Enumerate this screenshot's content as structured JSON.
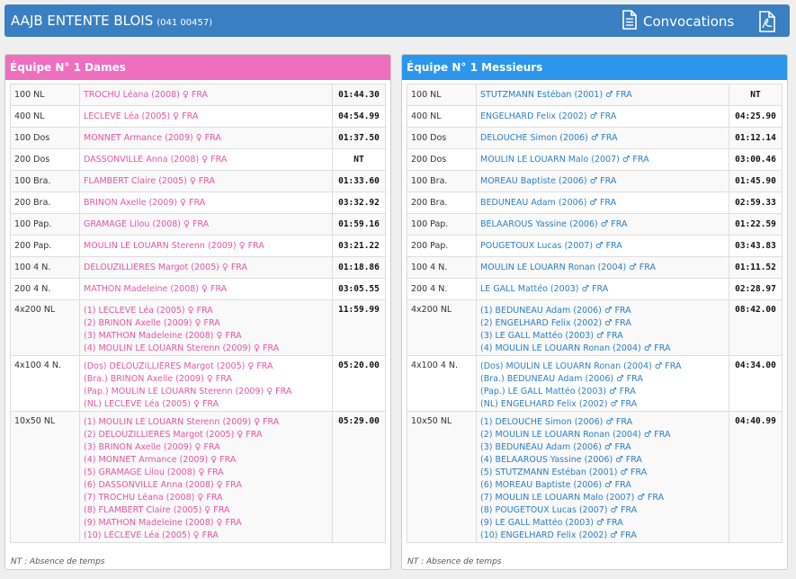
{
  "header": {
    "club": "AAJB ENTENTE BLOIS",
    "code": "(041 00457)",
    "convocations_label": "Convocations",
    "file_icon": "file-text-icon",
    "pdf_icon": "pdf-file-icon"
  },
  "colors": {
    "header_bg": "#3a7fc1",
    "dames": "#ee6fbd",
    "messieurs": "#2b96ec"
  },
  "dames": {
    "title": "Équipe N° 1 Dames",
    "note": "NT : Absence de temps",
    "rows": [
      {
        "event": "100 NL",
        "swimmers": [
          "TROCHU Léana (2008) ♀ FRA"
        ],
        "time": "01:44.30"
      },
      {
        "event": "400 NL",
        "swimmers": [
          "LECLEVE Léa (2005) ♀ FRA"
        ],
        "time": "04:54.99"
      },
      {
        "event": "100 Dos",
        "swimmers": [
          "MONNET Armance (2009) ♀ FRA"
        ],
        "time": "01:37.50"
      },
      {
        "event": "200 Dos",
        "swimmers": [
          "DASSONVILLE Anna (2008) ♀ FRA"
        ],
        "time": "NT"
      },
      {
        "event": "100 Bra.",
        "swimmers": [
          "FLAMBERT Claire (2005) ♀ FRA"
        ],
        "time": "01:33.60"
      },
      {
        "event": "200 Bra.",
        "swimmers": [
          "BRINON Axelle (2009) ♀ FRA"
        ],
        "time": "03:32.92"
      },
      {
        "event": "100 Pap.",
        "swimmers": [
          "GRAMAGE Lilou (2008) ♀ FRA"
        ],
        "time": "01:59.16"
      },
      {
        "event": "200 Pap.",
        "swimmers": [
          "MOULIN LE LOUARN Sterenn (2009) ♀ FRA"
        ],
        "time": "03:21.22"
      },
      {
        "event": "100 4 N.",
        "swimmers": [
          "DELOUZILLIERES Margot (2005) ♀ FRA"
        ],
        "time": "01:18.86"
      },
      {
        "event": "200 4 N.",
        "swimmers": [
          "MATHON Madeleine (2008) ♀ FRA"
        ],
        "time": "03:05.55"
      },
      {
        "event": "4x200 NL",
        "swimmers": [
          "(1) LECLEVE Léa (2005) ♀ FRA",
          "(2) BRINON Axelle (2009) ♀ FRA",
          "(3) MATHON Madeleine (2008) ♀ FRA",
          "(4) MOULIN LE LOUARN Sterenn (2009) ♀ FRA"
        ],
        "time": "11:59.99"
      },
      {
        "event": "4x100 4 N.",
        "swimmers": [
          "(Dos) DELOUZILLIERES Margot (2005) ♀ FRA",
          "(Bra.) BRINON Axelle (2009) ♀ FRA",
          "(Pap.) MOULIN LE LOUARN Sterenn (2009) ♀ FRA",
          "(NL) LECLEVE Léa (2005) ♀ FRA"
        ],
        "time": "05:20.00"
      },
      {
        "event": "10x50 NL",
        "swimmers": [
          "(1) MOULIN LE LOUARN Sterenn (2009) ♀ FRA",
          "(2) DELOUZILLIERES Margot (2005) ♀ FRA",
          "(3) BRINON Axelle (2009) ♀ FRA",
          "(4) MONNET Armance (2009) ♀ FRA",
          "(5) GRAMAGE Lilou (2008) ♀ FRA",
          "(6) DASSONVILLE Anna (2008) ♀ FRA",
          "(7) TROCHU Léana (2008) ♀ FRA",
          "(8) FLAMBERT Claire (2005) ♀ FRA",
          "(9) MATHON Madeleine (2008) ♀ FRA",
          "(10) LECLEVE Léa (2005) ♀ FRA"
        ],
        "time": "05:29.00"
      }
    ]
  },
  "messieurs": {
    "title": "Équipe N° 1 Messieurs",
    "note": "NT : Absence de temps",
    "rows": [
      {
        "event": "100 NL",
        "swimmers": [
          "STUTZMANN Estéban (2001) ♂ FRA"
        ],
        "time": "NT"
      },
      {
        "event": "400 NL",
        "swimmers": [
          "ENGELHARD Felix (2002) ♂ FRA"
        ],
        "time": "04:25.90"
      },
      {
        "event": "100 Dos",
        "swimmers": [
          "DELOUCHE Simon (2006) ♂ FRA"
        ],
        "time": "01:12.14"
      },
      {
        "event": "200 Dos",
        "swimmers": [
          "MOULIN LE LOUARN Malo (2007) ♂ FRA"
        ],
        "time": "03:00.46"
      },
      {
        "event": "100 Bra.",
        "swimmers": [
          "MOREAU Baptiste (2006) ♂ FRA"
        ],
        "time": "01:45.90"
      },
      {
        "event": "200 Bra.",
        "swimmers": [
          "BEDUNEAU Adam (2006) ♂ FRA"
        ],
        "time": "02:59.33"
      },
      {
        "event": "100 Pap.",
        "swimmers": [
          "BELAAROUS Yassine (2006) ♂ FRA"
        ],
        "time": "01:22.59"
      },
      {
        "event": "200 Pap.",
        "swimmers": [
          "POUGETOUX Lucas (2007) ♂ FRA"
        ],
        "time": "03:43.83"
      },
      {
        "event": "100 4 N.",
        "swimmers": [
          "MOULIN LE LOUARN Ronan (2004) ♂ FRA"
        ],
        "time": "01:11.52"
      },
      {
        "event": "200 4 N.",
        "swimmers": [
          "LE GALL Mattéo (2003) ♂ FRA"
        ],
        "time": "02:28.97"
      },
      {
        "event": "4x200 NL",
        "swimmers": [
          "(1) BEDUNEAU Adam (2006) ♂ FRA",
          "(2) ENGELHARD Felix (2002) ♂ FRA",
          "(3) LE GALL Mattéo (2003) ♂ FRA",
          "(4) MOULIN LE LOUARN Ronan (2004) ♂ FRA"
        ],
        "time": "08:42.00"
      },
      {
        "event": "4x100 4 N.",
        "swimmers": [
          "(Dos) MOULIN LE LOUARN Ronan (2004) ♂ FRA",
          "(Bra.) BEDUNEAU Adam (2006) ♂ FRA",
          "(Pap.) LE GALL Mattéo (2003) ♂ FRA",
          "(NL) ENGELHARD Felix (2002) ♂ FRA"
        ],
        "time": "04:34.00"
      },
      {
        "event": "10x50 NL",
        "swimmers": [
          "(1) DELOUCHE Simon (2006) ♂ FRA",
          "(2) MOULIN LE LOUARN Ronan (2004) ♂ FRA",
          "(3) BEDUNEAU Adam (2006) ♂ FRA",
          "(4) BELAAROUS Yassine (2006) ♂ FRA",
          "(5) STUTZMANN Estéban (2001) ♂ FRA",
          "(6) MOREAU Baptiste (2006) ♂ FRA",
          "(7) MOULIN LE LOUARN Malo (2007) ♂ FRA",
          "(8) POUGETOUX Lucas (2007) ♂ FRA",
          "(9) LE GALL Mattéo (2003) ♂ FRA",
          "(10) ENGELHARD Felix (2002) ♂ FRA"
        ],
        "time": "04:40.99"
      }
    ]
  }
}
